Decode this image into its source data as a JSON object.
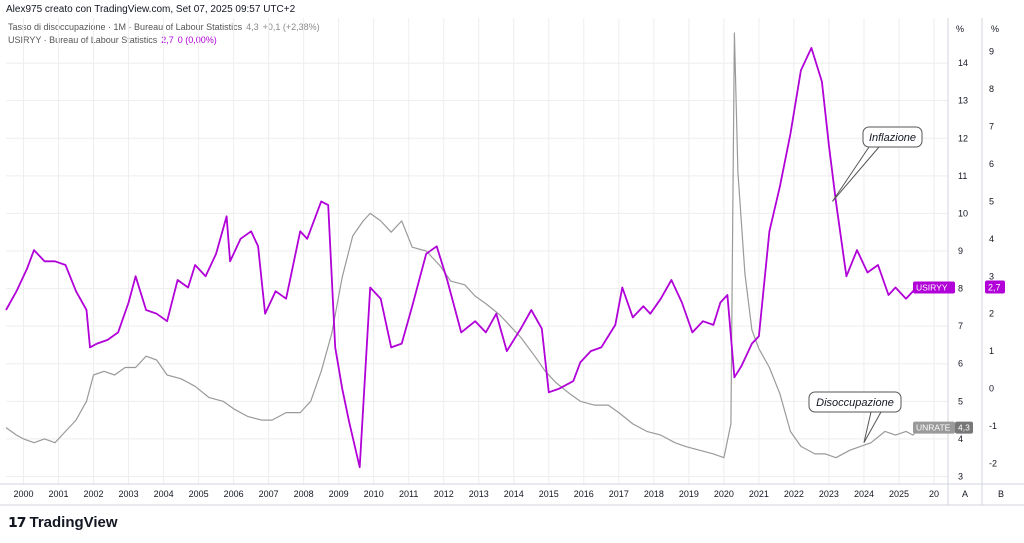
{
  "header": {
    "attribution": "Alex975 creato con TradingView.com, Set 07, 2025 09:57 UTC+2"
  },
  "legend": [
    {
      "label": "Tasso di disoccupazione · 1M · Bureau of Labour Statistics",
      "value": "4,3",
      "change": "+0,1 (+2,38%)"
    },
    {
      "label": "USIRYY · Bureau of Labour Statistics",
      "value": "2,7",
      "change": "0 (0,00%)"
    }
  ],
  "logo_text": "TradingView",
  "axis_unit_left": "%",
  "axis_unit_right": "%",
  "scale_buttons": [
    "A",
    "B"
  ],
  "colors": {
    "inflation": "#b100d8",
    "unemployment": "#9a9a9a",
    "grid": "#eeeeee"
  },
  "chart_data": {
    "type": "line",
    "x_ticks": [
      "2000",
      "2001",
      "2002",
      "2003",
      "2004",
      "2005",
      "2006",
      "2007",
      "2008",
      "2009",
      "2010",
      "2011",
      "2012",
      "2013",
      "2014",
      "2015",
      "2016",
      "2017",
      "2018",
      "2019",
      "2020",
      "2021",
      "2022",
      "2023",
      "2024",
      "2025",
      "20"
    ],
    "y_ticks_unemployment": [
      "3",
      "4",
      "5",
      "6",
      "7",
      "8",
      "9",
      "10",
      "11",
      "12",
      "13",
      "14"
    ],
    "y_ticks_inflation": [
      "-2",
      "-1",
      "0",
      "1",
      "2",
      "3",
      "4",
      "5",
      "6",
      "7",
      "8",
      "9"
    ],
    "ylim_unemployment": [
      2.8,
      15.2
    ],
    "ylim_inflation": [
      -2.55,
      9.9
    ],
    "annotations": [
      {
        "text": "Inflazione",
        "x": 2023.1,
        "y_axis": "inflation",
        "y": 5.0
      },
      {
        "text": "Disoccupazione",
        "x": 2024.0,
        "y_axis": "unemployment",
        "y": 3.9
      }
    ],
    "series": [
      {
        "name": "UNRATE",
        "axis": "unemployment",
        "last_label": "4,3",
        "points": [
          [
            1999.5,
            4.3
          ],
          [
            1999.8,
            4.1
          ],
          [
            2000.0,
            4.0
          ],
          [
            2000.3,
            3.9
          ],
          [
            2000.6,
            4.0
          ],
          [
            2000.9,
            3.9
          ],
          [
            2001.2,
            4.2
          ],
          [
            2001.5,
            4.5
          ],
          [
            2001.8,
            5.0
          ],
          [
            2002.0,
            5.7
          ],
          [
            2002.3,
            5.8
          ],
          [
            2002.6,
            5.7
          ],
          [
            2002.9,
            5.9
          ],
          [
            2003.2,
            5.9
          ],
          [
            2003.5,
            6.2
          ],
          [
            2003.8,
            6.1
          ],
          [
            2004.1,
            5.7
          ],
          [
            2004.5,
            5.6
          ],
          [
            2004.9,
            5.4
          ],
          [
            2005.3,
            5.1
          ],
          [
            2005.7,
            5.0
          ],
          [
            2006.0,
            4.8
          ],
          [
            2006.4,
            4.6
          ],
          [
            2006.8,
            4.5
          ],
          [
            2007.1,
            4.5
          ],
          [
            2007.5,
            4.7
          ],
          [
            2007.9,
            4.7
          ],
          [
            2008.2,
            5.0
          ],
          [
            2008.5,
            5.8
          ],
          [
            2008.8,
            6.8
          ],
          [
            2009.1,
            8.3
          ],
          [
            2009.4,
            9.4
          ],
          [
            2009.7,
            9.8
          ],
          [
            2009.9,
            10.0
          ],
          [
            2010.2,
            9.8
          ],
          [
            2010.5,
            9.5
          ],
          [
            2010.8,
            9.8
          ],
          [
            2011.1,
            9.1
          ],
          [
            2011.5,
            9.0
          ],
          [
            2011.9,
            8.6
          ],
          [
            2012.2,
            8.2
          ],
          [
            2012.6,
            8.1
          ],
          [
            2012.9,
            7.8
          ],
          [
            2013.2,
            7.6
          ],
          [
            2013.6,
            7.3
          ],
          [
            2013.9,
            7.0
          ],
          [
            2014.2,
            6.7
          ],
          [
            2014.6,
            6.2
          ],
          [
            2014.9,
            5.8
          ],
          [
            2015.2,
            5.5
          ],
          [
            2015.6,
            5.2
          ],
          [
            2015.9,
            5.0
          ],
          [
            2016.3,
            4.9
          ],
          [
            2016.7,
            4.9
          ],
          [
            2017.0,
            4.7
          ],
          [
            2017.4,
            4.4
          ],
          [
            2017.8,
            4.2
          ],
          [
            2018.2,
            4.1
          ],
          [
            2018.6,
            3.9
          ],
          [
            2018.9,
            3.8
          ],
          [
            2019.3,
            3.7
          ],
          [
            2019.7,
            3.6
          ],
          [
            2020.0,
            3.5
          ],
          [
            2020.2,
            4.4
          ],
          [
            2020.3,
            14.8
          ],
          [
            2020.4,
            11.1
          ],
          [
            2020.6,
            8.4
          ],
          [
            2020.8,
            6.9
          ],
          [
            2021.0,
            6.4
          ],
          [
            2021.3,
            5.9
          ],
          [
            2021.6,
            5.2
          ],
          [
            2021.9,
            4.2
          ],
          [
            2022.2,
            3.8
          ],
          [
            2022.6,
            3.6
          ],
          [
            2022.9,
            3.6
          ],
          [
            2023.2,
            3.5
          ],
          [
            2023.6,
            3.7
          ],
          [
            2023.9,
            3.8
          ],
          [
            2024.2,
            3.9
          ],
          [
            2024.6,
            4.2
          ],
          [
            2024.9,
            4.1
          ],
          [
            2025.2,
            4.2
          ],
          [
            2025.4,
            4.1
          ],
          [
            2025.6,
            4.3
          ]
        ]
      },
      {
        "name": "USIRYY",
        "axis": "inflation",
        "last_label": "2,7",
        "points": [
          [
            1999.5,
            2.1
          ],
          [
            1999.8,
            2.6
          ],
          [
            2000.1,
            3.2
          ],
          [
            2000.3,
            3.7
          ],
          [
            2000.6,
            3.4
          ],
          [
            2000.9,
            3.4
          ],
          [
            2001.2,
            3.3
          ],
          [
            2001.5,
            2.6
          ],
          [
            2001.8,
            2.1
          ],
          [
            2001.9,
            1.1
          ],
          [
            2002.1,
            1.2
          ],
          [
            2002.4,
            1.3
          ],
          [
            2002.7,
            1.5
          ],
          [
            2003.0,
            2.3
          ],
          [
            2003.2,
            3.0
          ],
          [
            2003.5,
            2.1
          ],
          [
            2003.8,
            2.0
          ],
          [
            2004.1,
            1.8
          ],
          [
            2004.4,
            2.9
          ],
          [
            2004.7,
            2.7
          ],
          [
            2004.9,
            3.3
          ],
          [
            2005.2,
            3.0
          ],
          [
            2005.5,
            3.6
          ],
          [
            2005.8,
            4.6
          ],
          [
            2005.9,
            3.4
          ],
          [
            2006.2,
            4.0
          ],
          [
            2006.5,
            4.2
          ],
          [
            2006.7,
            3.8
          ],
          [
            2006.9,
            2.0
          ],
          [
            2007.2,
            2.6
          ],
          [
            2007.5,
            2.4
          ],
          [
            2007.9,
            4.2
          ],
          [
            2008.1,
            4.0
          ],
          [
            2008.5,
            5.0
          ],
          [
            2008.7,
            4.9
          ],
          [
            2008.9,
            1.1
          ],
          [
            2009.1,
            0.0
          ],
          [
            2009.3,
            -0.9
          ],
          [
            2009.6,
            -2.1
          ],
          [
            2009.9,
            2.7
          ],
          [
            2010.2,
            2.4
          ],
          [
            2010.5,
            1.1
          ],
          [
            2010.8,
            1.2
          ],
          [
            2011.1,
            2.2
          ],
          [
            2011.5,
            3.6
          ],
          [
            2011.8,
            3.8
          ],
          [
            2012.1,
            2.9
          ],
          [
            2012.5,
            1.5
          ],
          [
            2012.9,
            1.8
          ],
          [
            2013.2,
            1.5
          ],
          [
            2013.5,
            2.0
          ],
          [
            2013.8,
            1.0
          ],
          [
            2014.2,
            1.6
          ],
          [
            2014.5,
            2.1
          ],
          [
            2014.8,
            1.6
          ],
          [
            2015.0,
            -0.1
          ],
          [
            2015.3,
            0.0
          ],
          [
            2015.7,
            0.2
          ],
          [
            2015.9,
            0.7
          ],
          [
            2016.2,
            1.0
          ],
          [
            2016.5,
            1.1
          ],
          [
            2016.9,
            1.7
          ],
          [
            2017.1,
            2.7
          ],
          [
            2017.4,
            1.9
          ],
          [
            2017.7,
            2.2
          ],
          [
            2017.9,
            2.0
          ],
          [
            2018.2,
            2.4
          ],
          [
            2018.5,
            2.9
          ],
          [
            2018.8,
            2.3
          ],
          [
            2019.1,
            1.5
          ],
          [
            2019.4,
            1.8
          ],
          [
            2019.7,
            1.7
          ],
          [
            2019.9,
            2.3
          ],
          [
            2020.1,
            2.5
          ],
          [
            2020.3,
            0.3
          ],
          [
            2020.5,
            0.6
          ],
          [
            2020.8,
            1.2
          ],
          [
            2021.0,
            1.4
          ],
          [
            2021.3,
            4.2
          ],
          [
            2021.6,
            5.4
          ],
          [
            2021.9,
            6.8
          ],
          [
            2022.2,
            8.5
          ],
          [
            2022.5,
            9.1
          ],
          [
            2022.8,
            8.2
          ],
          [
            2023.0,
            6.5
          ],
          [
            2023.2,
            5.0
          ],
          [
            2023.5,
            3.0
          ],
          [
            2023.8,
            3.7
          ],
          [
            2024.1,
            3.1
          ],
          [
            2024.4,
            3.3
          ],
          [
            2024.7,
            2.5
          ],
          [
            2024.9,
            2.7
          ],
          [
            2025.2,
            2.4
          ],
          [
            2025.5,
            2.7
          ]
        ]
      }
    ]
  }
}
